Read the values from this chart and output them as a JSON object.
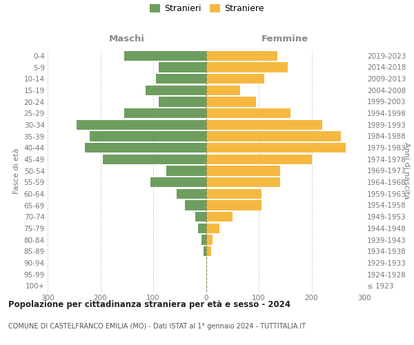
{
  "age_groups": [
    "100+",
    "95-99",
    "90-94",
    "85-89",
    "80-84",
    "75-79",
    "70-74",
    "65-69",
    "60-64",
    "55-59",
    "50-54",
    "45-49",
    "40-44",
    "35-39",
    "30-34",
    "25-29",
    "20-24",
    "15-19",
    "10-14",
    "5-9",
    "0-4"
  ],
  "birth_years": [
    "≤ 1923",
    "1924-1928",
    "1929-1933",
    "1934-1938",
    "1939-1943",
    "1944-1948",
    "1949-1953",
    "1954-1958",
    "1959-1963",
    "1964-1968",
    "1969-1973",
    "1974-1978",
    "1979-1983",
    "1984-1988",
    "1989-1993",
    "1994-1998",
    "1999-2003",
    "2004-2008",
    "2009-2013",
    "2014-2018",
    "2019-2023"
  ],
  "males": [
    0,
    0,
    0,
    5,
    8,
    15,
    20,
    40,
    55,
    105,
    75,
    195,
    230,
    220,
    245,
    155,
    90,
    115,
    95,
    90,
    155
  ],
  "females": [
    0,
    0,
    0,
    10,
    12,
    25,
    50,
    105,
    105,
    140,
    140,
    200,
    265,
    255,
    220,
    160,
    95,
    65,
    110,
    155,
    135
  ],
  "male_color": "#6e9e5f",
  "female_color": "#f5b942",
  "background_color": "#ffffff",
  "grid_color": "#cccccc",
  "title": "Popolazione per cittadinanza straniera per età e sesso - 2024",
  "subtitle": "COMUNE DI CASTELFRANCO EMILIA (MO) - Dati ISTAT al 1° gennaio 2024 - TUTTITALIA.IT",
  "xlabel_left": "Maschi",
  "xlabel_right": "Femmine",
  "ylabel_left": "Fasce di età",
  "ylabel_right": "Anni di nascita",
  "legend_stranieri": "Stranieri",
  "legend_straniere": "Straniere",
  "xlim": 300,
  "bar_height": 0.85,
  "xticks": [
    -300,
    -200,
    -100,
    0,
    100,
    200,
    300
  ],
  "xticklabels": [
    "300",
    "200",
    "100",
    "0",
    "100",
    "200",
    "300"
  ]
}
